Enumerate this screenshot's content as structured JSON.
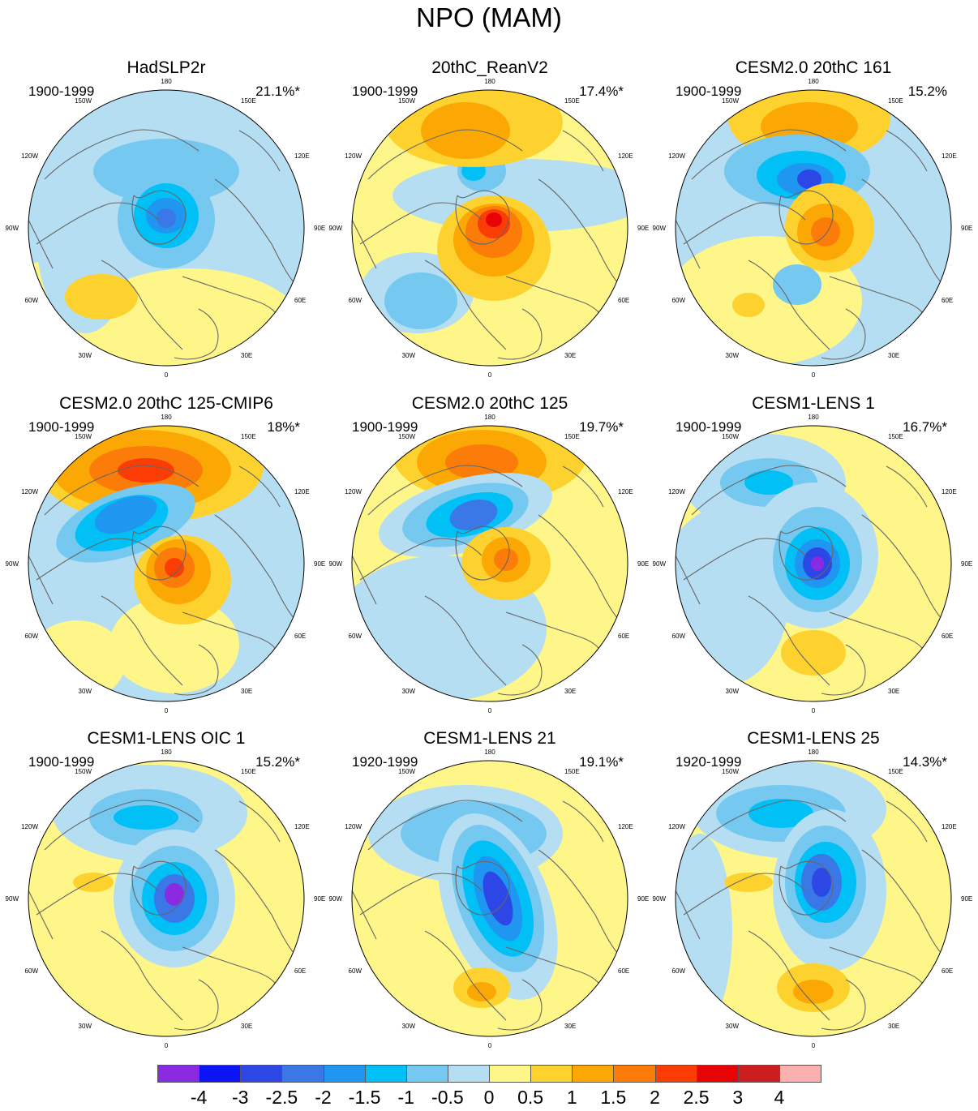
{
  "figure": {
    "title": "NPO (MAM)"
  },
  "panels": [
    {
      "title": "HadSLP2r",
      "years": "1900-1999",
      "pct": "21.1%*",
      "pattern": "hadslp"
    },
    {
      "title": "20thC_ReanV2",
      "years": "1900-1999",
      "pct": "17.4%*",
      "pattern": "rean"
    },
    {
      "title": "CESM2.0 20thC 161",
      "years": "1900-1999",
      "pct": "15.2%",
      "pattern": "cesm2_161"
    },
    {
      "title": "CESM2.0 20thC 125-CMIP6",
      "years": "1900-1999",
      "pct": "18%*",
      "pattern": "cesm2_cmip6"
    },
    {
      "title": "CESM2.0 20thC 125",
      "years": "1900-1999",
      "pct": "19.7%*",
      "pattern": "cesm2_125"
    },
    {
      "title": "CESM1-LENS 1",
      "years": "1900-1999",
      "pct": "16.7%*",
      "pattern": "lens1"
    },
    {
      "title": "CESM1-LENS OIC 1",
      "years": "1900-1999",
      "pct": "15.2%*",
      "pattern": "lens_oic"
    },
    {
      "title": "CESM1-LENS 21",
      "years": "1920-1999",
      "pct": "19.1%*",
      "pattern": "lens21"
    },
    {
      "title": "CESM1-LENS 25",
      "years": "1920-1999",
      "pct": "14.3%*",
      "pattern": "lens25"
    }
  ],
  "longitude_labels": [
    "180",
    "150E",
    "120E",
    "90E",
    "60E",
    "30E",
    "0",
    "30W",
    "60W",
    "90W",
    "120W",
    "150W"
  ],
  "colorbar": {
    "labels": [
      "-4",
      "-3",
      "-2.5",
      "-2",
      "-1.5",
      "-1",
      "-0.5",
      "0",
      "0.5",
      "1",
      "1.5",
      "2",
      "2.5",
      "3",
      "4"
    ],
    "colors": [
      "#8a2be2",
      "#0a14f5",
      "#2d46e6",
      "#3a78e8",
      "#1f96f0",
      "#00c0f5",
      "#75c8ef",
      "#b6def2",
      "#fff68a",
      "#fdd22e",
      "#fca804",
      "#fb7c08",
      "#fb3c04",
      "#e80404",
      "#cc1e1e",
      "#fbb0b0"
    ]
  },
  "colors": {
    "coastline": "#666666",
    "map_outline": "#000000"
  }
}
